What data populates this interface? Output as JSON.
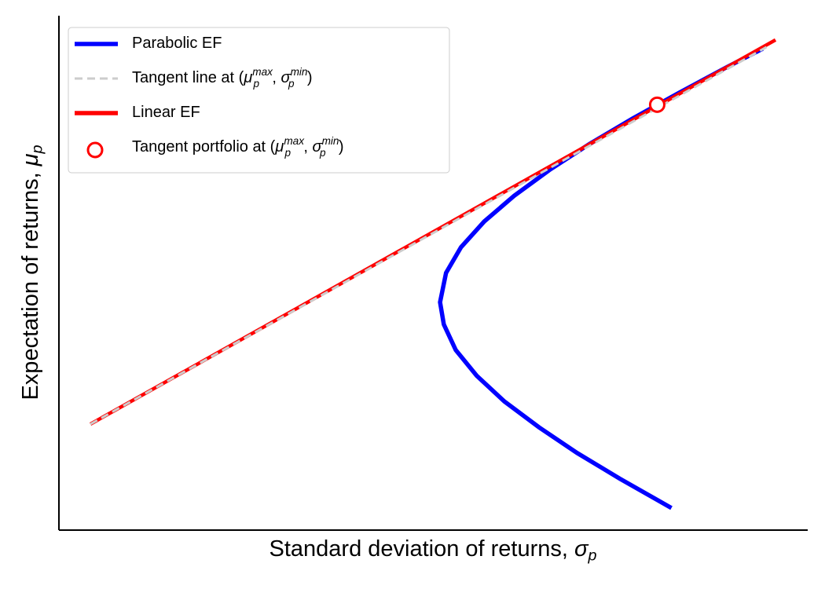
{
  "chart_data": {
    "type": "line",
    "xlabel": "Standard deviation of returns, σ_p",
    "ylabel": "Expectation of returns, μ_p",
    "xlim": [
      0,
      10
    ],
    "ylim": [
      0,
      10
    ],
    "legend": "upper left",
    "series": [
      {
        "name": "Parabolic EF",
        "type": "line",
        "color": "#0000ff",
        "style": "solid",
        "x": [
          8.18,
          7.49,
          6.92,
          6.41,
          5.95,
          5.58,
          5.3,
          5.14,
          5.09,
          5.17,
          5.37,
          5.68,
          6.08,
          6.55,
          7.08,
          7.66,
          8.28,
          8.92,
          9.4
        ],
        "values": [
          0.43,
          1,
          1.5,
          2,
          2.5,
          3,
          3.5,
          4,
          4.43,
          5,
          5.5,
          6,
          6.5,
          7,
          7.5,
          8,
          8.5,
          9,
          9.36
        ]
      },
      {
        "name": "Linear EF",
        "type": "line",
        "color": "#ff0000",
        "style": "solid",
        "x": [
          0.42,
          9.57
        ],
        "values": [
          2.06,
          9.53
        ]
      },
      {
        "name": "Tangent line at (μ_p^max, σ_p^min)",
        "type": "line",
        "color": "#cccccc",
        "style": "dashed",
        "x": [
          0.42,
          9.45
        ],
        "values": [
          2.06,
          9.39
        ]
      },
      {
        "name": "Tangent portfolio at (μ_p^max, σ_p^min)",
        "type": "scatter",
        "color": "#ff0000",
        "x": [
          7.99
        ],
        "values": [
          8.27
        ]
      }
    ]
  }
}
